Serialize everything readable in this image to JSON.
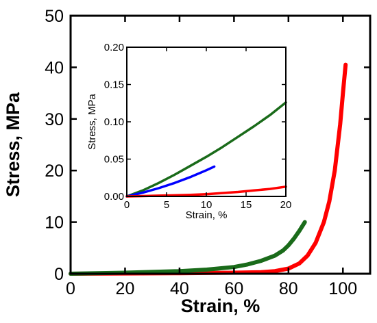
{
  "chart_data": [
    {
      "type": "line",
      "title": "",
      "xlabel": "Strain, %",
      "ylabel": "Stress, MPa",
      "xlim": [
        0,
        110
      ],
      "ylim": [
        0,
        50
      ],
      "xticks": [
        0,
        20,
        40,
        60,
        80,
        100
      ],
      "yticks": [
        0,
        10,
        20,
        30,
        40,
        50
      ],
      "grid": false,
      "legend": "none",
      "series": [
        {
          "color": "#ff0000",
          "x": [
            0,
            20,
            40,
            60,
            70,
            75,
            80,
            84,
            87,
            90,
            93,
            95,
            97,
            99,
            100,
            101
          ],
          "y": [
            0.0,
            0.05,
            0.1,
            0.2,
            0.3,
            0.5,
            1.0,
            2.0,
            3.5,
            6.0,
            10.0,
            14.0,
            20.0,
            29.0,
            35.0,
            40.5
          ]
        },
        {
          "color": "#1a6b1a",
          "x": [
            0,
            20,
            40,
            50,
            60,
            65,
            70,
            75,
            78,
            80,
            82,
            84,
            86
          ],
          "y": [
            0.0,
            0.2,
            0.5,
            0.8,
            1.3,
            1.8,
            2.5,
            3.5,
            4.5,
            5.5,
            6.8,
            8.3,
            10.0
          ]
        }
      ]
    },
    {
      "type": "line",
      "title": "",
      "xlabel": "Strain, %",
      "ylabel": "Stress, MPa",
      "xlim": [
        0,
        20
      ],
      "ylim": [
        0,
        0.2
      ],
      "xticks": [
        0,
        5,
        10,
        15,
        20
      ],
      "yticks": [
        "0.00",
        "0.05",
        "0.10",
        "0.15",
        "0.20"
      ],
      "grid": false,
      "legend": "none",
      "series": [
        {
          "color": "#1a6b1a",
          "x": [
            0,
            2,
            4,
            6,
            8,
            10,
            12,
            14,
            16,
            18,
            20
          ],
          "y": [
            0.0,
            0.008,
            0.018,
            0.029,
            0.041,
            0.053,
            0.066,
            0.08,
            0.094,
            0.109,
            0.126
          ]
        },
        {
          "color": "#0000ff",
          "x": [
            0,
            2,
            4,
            6,
            8,
            10,
            11
          ],
          "y": [
            0.0,
            0.005,
            0.011,
            0.018,
            0.026,
            0.035,
            0.04
          ]
        },
        {
          "color": "#ff0000",
          "x": [
            0,
            2,
            4,
            6,
            8,
            10,
            12,
            14,
            16,
            18,
            20
          ],
          "y": [
            0.0,
            0.0005,
            0.001,
            0.0015,
            0.002,
            0.003,
            0.0045,
            0.006,
            0.008,
            0.01,
            0.013
          ]
        }
      ]
    }
  ]
}
